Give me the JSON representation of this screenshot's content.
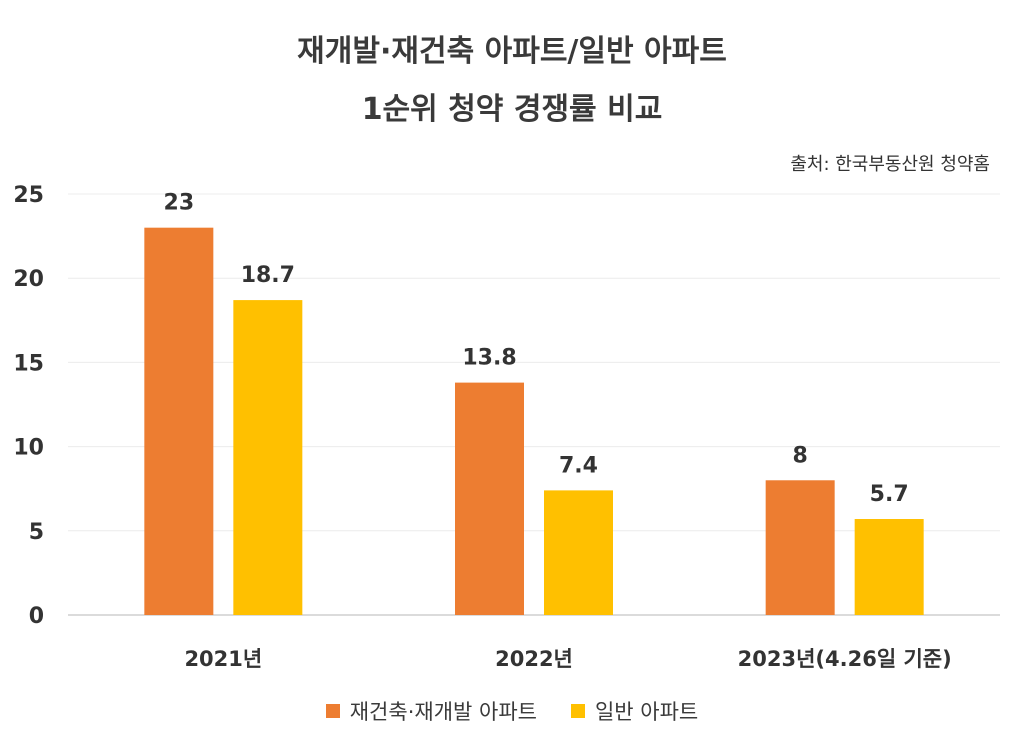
{
  "chart_data": {
    "type": "bar",
    "title_lines": [
      "재개발·재건축 아파트/일반 아파트",
      "1순위 청약 경쟁률 비교"
    ],
    "source": "출처: 한국부동산원 청약홈",
    "categories": [
      "2021년",
      "2022년",
      "2023년(4.26일 기준)"
    ],
    "series": [
      {
        "name": "재건축·재개발 아파트",
        "values": [
          23,
          13.8,
          8
        ],
        "color": "#ED7D31"
      },
      {
        "name": "일반 아파트",
        "values": [
          18.7,
          7.4,
          5.7
        ],
        "color": "#FFC000"
      }
    ],
    "data_labels": [
      [
        "23",
        "18.7"
      ],
      [
        "13.8",
        "7.4"
      ],
      [
        "8",
        "5.7"
      ]
    ],
    "yticks": [
      "0",
      "5",
      "10",
      "15",
      "20",
      "25"
    ],
    "ylim": [
      0,
      25
    ],
    "grid": true,
    "legend_position": "bottom"
  }
}
